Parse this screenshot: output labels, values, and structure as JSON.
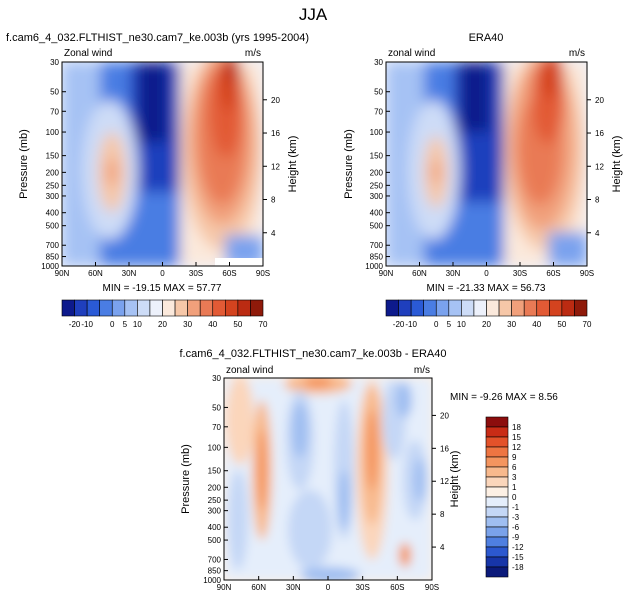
{
  "figure": {
    "title": "JJA"
  },
  "chart_data": [
    {
      "type": "heatmap",
      "title": "f.cam6_4_032.FLTHIST_ne30.cam7_ke.003b (yrs 1995-2004)",
      "variable": "Zonal wind",
      "units": "m/s",
      "xlabel": "",
      "ylabel": "Pressure (mb)",
      "ylabel_right": "Height (km)",
      "x_ticks": [
        "90N",
        "60N",
        "30N",
        "0",
        "30S",
        "60S",
        "90S"
      ],
      "y_ticks": [
        "30",
        "50",
        "70",
        "100",
        "150",
        "200",
        "250",
        "300",
        "400",
        "500",
        "700",
        "850",
        "1000"
      ],
      "height_ticks": [
        "4",
        "8",
        "12",
        "16",
        "20"
      ],
      "stats": "MIN = -19.15   MAX =  57.77",
      "colorbar_labels": [
        "-20",
        "-10",
        "0",
        "5",
        "10",
        "20",
        "30",
        "40",
        "50",
        "70"
      ],
      "contour_levels": [
        -20,
        -10,
        -5,
        0,
        5,
        10,
        15,
        20,
        25,
        30,
        35,
        40,
        45,
        50,
        60,
        70
      ],
      "colors": [
        "#0d1a8c",
        "#1f3fbd",
        "#2a5ad6",
        "#4a7de3",
        "#7aa2ee",
        "#a6c2f4",
        "#cddcf7",
        "#edf1fb",
        "#fbe9dc",
        "#f6c7a8",
        "#f1a07b",
        "#e97a55",
        "#e25a35",
        "#d4431f",
        "#bb2b12",
        "#8f1a0a"
      ],
      "features": {
        "min": -19.15,
        "max": 57.77
      }
    },
    {
      "type": "heatmap",
      "title": "ERA40",
      "variable": "zonal wind",
      "units": "m/s",
      "xlabel": "",
      "ylabel": "Pressure (mb)",
      "ylabel_right": "Height (km)",
      "x_ticks": [
        "90N",
        "60N",
        "30N",
        "0",
        "30S",
        "60S",
        "90S"
      ],
      "y_ticks": [
        "30",
        "50",
        "70",
        "100",
        "150",
        "200",
        "250",
        "300",
        "400",
        "500",
        "700",
        "850",
        "1000"
      ],
      "height_ticks": [
        "4",
        "8",
        "12",
        "16",
        "20"
      ],
      "stats": "MIN = -21.33   MAX =  56.73",
      "colorbar_labels": [
        "-20",
        "-10",
        "0",
        "5",
        "10",
        "20",
        "30",
        "40",
        "50",
        "70"
      ],
      "contour_levels": [
        -20,
        -10,
        -5,
        0,
        5,
        10,
        15,
        20,
        25,
        30,
        35,
        40,
        45,
        50,
        60,
        70
      ],
      "colors": [
        "#0d1a8c",
        "#1f3fbd",
        "#2a5ad6",
        "#4a7de3",
        "#7aa2ee",
        "#a6c2f4",
        "#cddcf7",
        "#edf1fb",
        "#fbe9dc",
        "#f6c7a8",
        "#f1a07b",
        "#e97a55",
        "#e25a35",
        "#d4431f",
        "#bb2b12",
        "#8f1a0a"
      ],
      "features": {
        "min": -21.33,
        "max": 56.73
      }
    },
    {
      "type": "heatmap",
      "title": "f.cam6_4_032.FLTHIST_ne30.cam7_ke.003b - ERA40",
      "variable": "zonal wind",
      "units": "m/s",
      "xlabel": "",
      "ylabel": "Pressure (mb)",
      "ylabel_right": "Height (km)",
      "x_ticks": [
        "90N",
        "60N",
        "30N",
        "0",
        "30S",
        "60S",
        "90S"
      ],
      "y_ticks": [
        "30",
        "50",
        "70",
        "100",
        "150",
        "200",
        "250",
        "300",
        "400",
        "500",
        "700",
        "850",
        "1000"
      ],
      "height_ticks": [
        "4",
        "8",
        "12",
        "16",
        "20"
      ],
      "stats": "MIN = -9.26   MAX =  8.56",
      "colorbar_labels": [
        "18",
        "15",
        "12",
        "9",
        "6",
        "3",
        "1",
        "0",
        "-1",
        "-3",
        "-6",
        "-9",
        "-12",
        "-15",
        "-18"
      ],
      "contour_levels": [
        18,
        15,
        12,
        9,
        6,
        3,
        1,
        0,
        -1,
        -3,
        -6,
        -9,
        -12,
        -15,
        -18
      ],
      "colors": [
        "#8c0d0d",
        "#c92c16",
        "#e3522a",
        "#ee7542",
        "#f4955f",
        "#f8b98d",
        "#fbd6bb",
        "#fdf0e4",
        "#e5eefb",
        "#c4d7f6",
        "#9fbef1",
        "#7aa2ea",
        "#4f7fe0",
        "#2c58cf",
        "#1735a8",
        "#0b1a7a"
      ],
      "features": {
        "min": -9.26,
        "max": 8.56
      }
    }
  ]
}
